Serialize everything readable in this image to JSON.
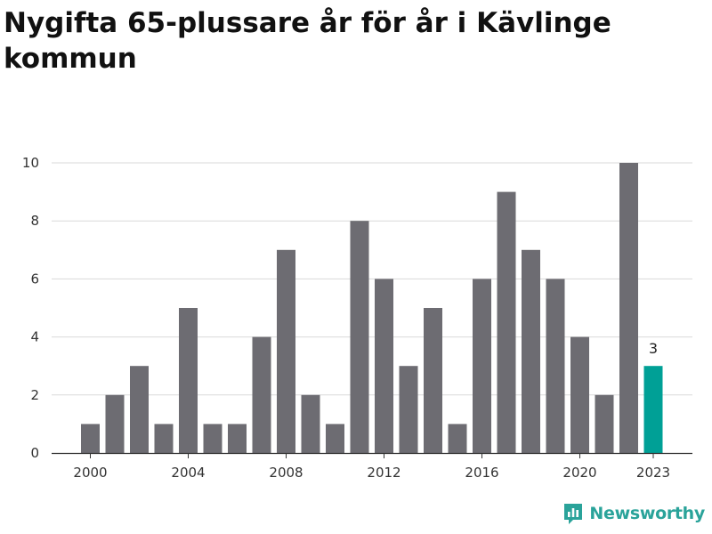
{
  "title": "Nygifta 65-plussare år för år i Kävlinge kommun",
  "brand": {
    "name": "Newsworthy",
    "icon": "newsworthy-logo-icon",
    "color": "#2aa39a"
  },
  "colors": {
    "bar": "#6d6c72",
    "highlight": "#00a096",
    "grid": "#d9d9d9",
    "axis": "#333333"
  },
  "chart_data": {
    "type": "bar",
    "title": "Nygifta 65-plussare år för år i Kävlinge kommun",
    "xlabel": "",
    "ylabel": "",
    "categories": [
      "2000",
      "2001",
      "2002",
      "2003",
      "2004",
      "2005",
      "2006",
      "2007",
      "2008",
      "2009",
      "2010",
      "2011",
      "2012",
      "2013",
      "2014",
      "2015",
      "2016",
      "2017",
      "2018",
      "2019",
      "2020",
      "2021",
      "2022",
      "2023"
    ],
    "values": [
      1,
      2,
      3,
      1,
      5,
      1,
      1,
      4,
      7,
      2,
      1,
      8,
      6,
      3,
      5,
      1,
      6,
      9,
      7,
      6,
      4,
      2,
      10,
      3
    ],
    "highlight_index": 23,
    "highlight_label": "3",
    "ylim": [
      0,
      10
    ],
    "yticks": [
      0,
      2,
      4,
      6,
      8,
      10
    ],
    "xticks": [
      "2000",
      "2004",
      "2008",
      "2012",
      "2016",
      "2020",
      "2023"
    ],
    "grid": true,
    "legend": "none"
  }
}
